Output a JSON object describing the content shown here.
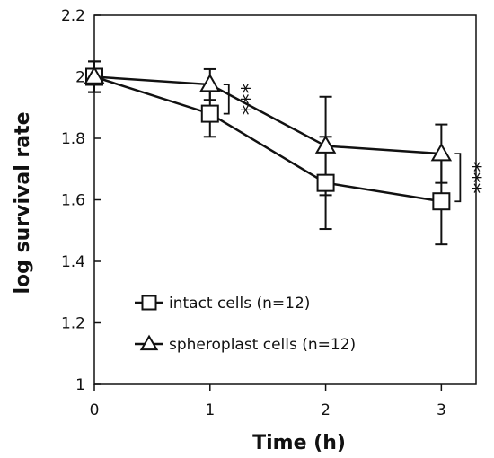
{
  "chart_data": {
    "type": "line",
    "x": [
      0,
      1,
      2,
      3
    ],
    "xticks": [
      "0",
      "1",
      "2",
      "3"
    ],
    "xlim": [
      0,
      3.3
    ],
    "ylim": [
      1,
      2.2
    ],
    "yticks": [
      "1",
      "1.2",
      "1.4",
      "1.6",
      "1.8",
      "2",
      "2.2"
    ],
    "xlabel": "Time (h)",
    "ylabel": "log survival rate",
    "grid": false,
    "legend_position": "bottom-left",
    "series": [
      {
        "name": "intact cells (n=12)",
        "marker": "square",
        "values": [
          2.0,
          1.88,
          1.655,
          1.595
        ],
        "error": [
          0.05,
          0.075,
          0.15,
          0.14
        ]
      },
      {
        "name": "spheroplast cells (n=12)",
        "marker": "triangle",
        "values": [
          2.0,
          1.975,
          1.775,
          1.75
        ],
        "error": [
          0.05,
          0.05,
          0.16,
          0.095
        ]
      }
    ],
    "annotations": [
      {
        "text": "***",
        "x": 1,
        "between": [
          "intact cells (n=12)",
          "spheroplast cells (n=12)"
        ]
      },
      {
        "text": "***",
        "x": 3,
        "between": [
          "intact cells (n=12)",
          "spheroplast cells (n=12)"
        ]
      }
    ]
  }
}
